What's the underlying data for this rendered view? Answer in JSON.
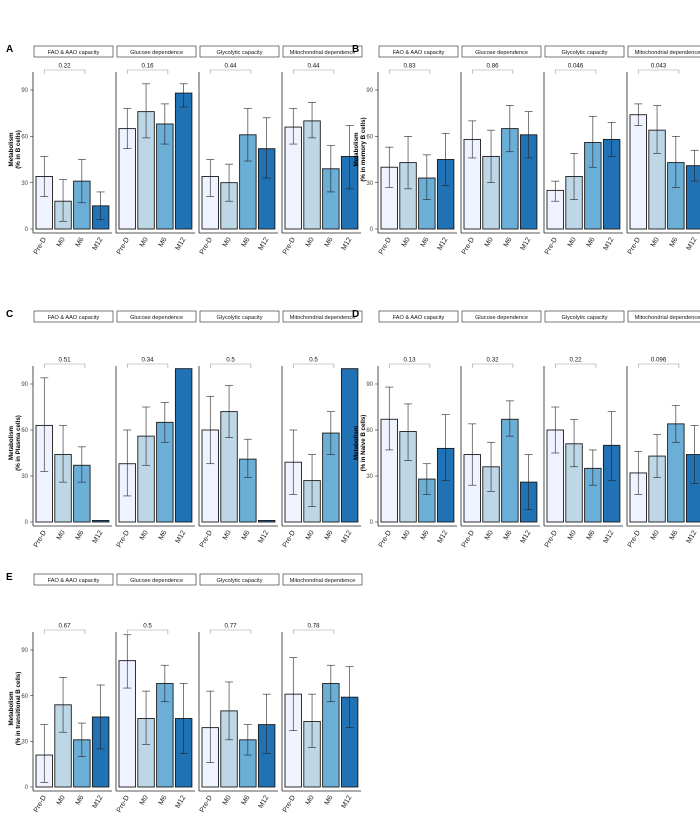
{
  "colors": {
    "Pre-D": "#eff3ff",
    "M0": "#bdd7e7",
    "M6": "#6baed6",
    "M12": "#2171b5",
    "outline": "#1a1a1a"
  },
  "chart_data": [
    {
      "type": "bar",
      "panel": "A",
      "ylabel": "Metabolism\n(% in B cells)",
      "ylim": [
        0,
        105
      ],
      "yticks": [
        0,
        30,
        60,
        90
      ],
      "categories": [
        "Pre-D",
        "M0",
        "M6",
        "M12"
      ],
      "facets": [
        {
          "title": "FAO & AAO capacity",
          "pvalue": "0.22",
          "values": [
            34,
            18,
            31,
            15
          ],
          "errors": [
            [
              21,
              47
            ],
            [
              5,
              32
            ],
            [
              17,
              45
            ],
            [
              6,
              24
            ]
          ]
        },
        {
          "title": "Glucose dependence",
          "pvalue": "0.16",
          "values": [
            65,
            76,
            68,
            88
          ],
          "errors": [
            [
              52,
              78
            ],
            [
              59,
              94
            ],
            [
              55,
              81
            ],
            [
              79,
              94
            ]
          ]
        },
        {
          "title": "Glycolytic capacity",
          "pvalue": "0.44",
          "values": [
            34,
            30,
            61,
            52
          ],
          "errors": [
            [
              21,
              45
            ],
            [
              18,
              42
            ],
            [
              44,
              78
            ],
            [
              33,
              72
            ]
          ]
        },
        {
          "title": "Mitochondrial dependence",
          "pvalue": "0.44",
          "values": [
            66,
            70,
            39,
            47
          ],
          "errors": [
            [
              55,
              78
            ],
            [
              59,
              82
            ],
            [
              24,
              54
            ],
            [
              26,
              67
            ]
          ]
        }
      ]
    },
    {
      "type": "bar",
      "panel": "B",
      "ylabel": "Metabolism\n(% in memory B cells)",
      "ylim": [
        0,
        105
      ],
      "yticks": [
        0,
        30,
        60,
        90
      ],
      "categories": [
        "Pre-D",
        "M0",
        "M6",
        "M12"
      ],
      "facets": [
        {
          "title": "FAO & AAO capacity",
          "pvalue": "0.83",
          "values": [
            40,
            43,
            33,
            45
          ],
          "errors": [
            [
              27,
              53
            ],
            [
              26,
              60
            ],
            [
              19,
              48
            ],
            [
              28,
              62
            ]
          ]
        },
        {
          "title": "Glucose dependence",
          "pvalue": "0.86",
          "values": [
            58,
            47,
            65,
            61
          ],
          "errors": [
            [
              46,
              70
            ],
            [
              30,
              64
            ],
            [
              50,
              80
            ],
            [
              46,
              76
            ]
          ]
        },
        {
          "title": "Glycolytic capacity",
          "pvalue": "0.046",
          "values": [
            25,
            34,
            56,
            58
          ],
          "errors": [
            [
              18,
              31
            ],
            [
              19,
              49
            ],
            [
              40,
              73
            ],
            [
              47,
              69
            ]
          ]
        },
        {
          "title": "Mitochondrial dependence",
          "pvalue": "0.043",
          "values": [
            74,
            64,
            43,
            41
          ],
          "errors": [
            [
              67,
              81
            ],
            [
              49,
              80
            ],
            [
              27,
              60
            ],
            [
              31,
              51
            ]
          ]
        }
      ]
    },
    {
      "type": "bar",
      "panel": "C",
      "ylabel": "Metabolism\n(% in Plasma cells)",
      "ylim": [
        0,
        105
      ],
      "yticks": [
        0,
        30,
        60,
        90
      ],
      "categories": [
        "Pre-D",
        "M0",
        "M6",
        "M12"
      ],
      "facets": [
        {
          "title": "FAO & AAO capacity",
          "pvalue": "0.51",
          "values": [
            63,
            44,
            37,
            1
          ],
          "errors": [
            [
              33,
              94
            ],
            [
              26,
              63
            ],
            [
              26,
              49
            ],
            null
          ]
        },
        {
          "title": "Glucose dependence",
          "pvalue": "0.34",
          "values": [
            38,
            56,
            65,
            100
          ],
          "errors": [
            [
              17,
              60
            ],
            [
              37,
              75
            ],
            [
              52,
              78
            ],
            null
          ]
        },
        {
          "title": "Glycolytic capacity",
          "pvalue": "0.5",
          "values": [
            60,
            72,
            41,
            1
          ],
          "errors": [
            [
              38,
              82
            ],
            [
              55,
              89
            ],
            [
              29,
              54
            ],
            null
          ]
        },
        {
          "title": "Mitochondrial dependence",
          "pvalue": "0.5",
          "values": [
            39,
            27,
            58,
            100
          ],
          "errors": [
            [
              18,
              60
            ],
            [
              10,
              44
            ],
            [
              44,
              72
            ],
            null
          ]
        }
      ]
    },
    {
      "type": "bar",
      "panel": "D",
      "ylabel": "Metabolism\n(% in Naive B cells)",
      "ylim": [
        0,
        105
      ],
      "yticks": [
        0,
        30,
        60,
        90
      ],
      "categories": [
        "Pre-D",
        "M0",
        "M6",
        "M12"
      ],
      "facets": [
        {
          "title": "FAO & AAO capacity",
          "pvalue": "0.13",
          "values": [
            67,
            59,
            28,
            48
          ],
          "errors": [
            [
              47,
              88
            ],
            [
              40,
              77
            ],
            [
              18,
              38
            ],
            [
              27,
              70
            ]
          ]
        },
        {
          "title": "Glucose dependence",
          "pvalue": "0.32",
          "values": [
            44,
            36,
            67,
            26
          ],
          "errors": [
            [
              24,
              64
            ],
            [
              20,
              52
            ],
            [
              56,
              79
            ],
            [
              8,
              44
            ]
          ]
        },
        {
          "title": "Glycolytic capacity",
          "pvalue": "0.22",
          "values": [
            60,
            51,
            35,
            50
          ],
          "errors": [
            [
              45,
              75
            ],
            [
              36,
              67
            ],
            [
              24,
              47
            ],
            [
              27,
              72
            ]
          ]
        },
        {
          "title": "Mitochondrial dependence",
          "pvalue": "0.096",
          "values": [
            32,
            43,
            64,
            44
          ],
          "errors": [
            [
              18,
              46
            ],
            [
              29,
              57
            ],
            [
              52,
              76
            ],
            [
              25,
              63
            ]
          ]
        }
      ]
    },
    {
      "type": "bar",
      "panel": "E",
      "ylabel": "Metabolism\n(% in transitional B cells)",
      "ylim": [
        0,
        105
      ],
      "yticks": [
        0,
        30,
        60,
        90
      ],
      "categories": [
        "Pre-D",
        "M0",
        "M6",
        "M12"
      ],
      "facets": [
        {
          "title": "FAO & AAO capacity",
          "pvalue": "0.67",
          "values": [
            21,
            54,
            31,
            46
          ],
          "errors": [
            [
              3,
              41
            ],
            [
              36,
              72
            ],
            [
              20,
              42
            ],
            [
              25,
              67
            ]
          ]
        },
        {
          "title": "Glucose dependence",
          "pvalue": "0.5",
          "values": [
            83,
            45,
            68,
            45
          ],
          "errors": [
            [
              65,
              100
            ],
            [
              28,
              63
            ],
            [
              56,
              80
            ],
            [
              22,
              68
            ]
          ]
        },
        {
          "title": "Glycolytic capacity",
          "pvalue": "0.77",
          "values": [
            39,
            50,
            31,
            41
          ],
          "errors": [
            [
              16,
              63
            ],
            [
              31,
              69
            ],
            [
              21,
              41
            ],
            [
              22,
              61
            ]
          ]
        },
        {
          "title": "Mitochondrial dependence",
          "pvalue": "0.78",
          "values": [
            61,
            43,
            68,
            59
          ],
          "errors": [
            [
              37,
              85
            ],
            [
              26,
              61
            ],
            [
              56,
              80
            ],
            [
              39,
              79
            ]
          ]
        }
      ]
    }
  ]
}
